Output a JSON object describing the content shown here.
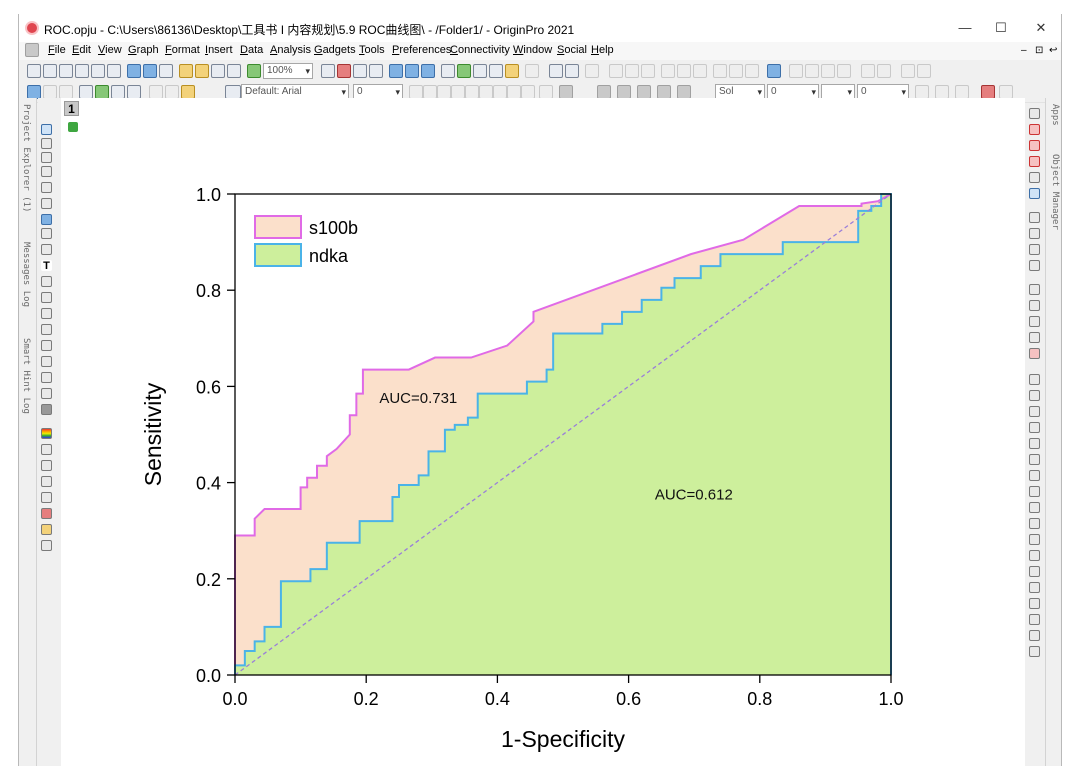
{
  "window": {
    "title": "ROC.opju - C:\\Users\\86136\\Desktop\\工具书 I 内容规划\\5.9 ROC曲线图\\ - /Folder1/ - OriginPro 2021",
    "minimize": "—",
    "maximize": "☐",
    "close": "✕"
  },
  "menu": {
    "items": [
      "File",
      "Edit",
      "View",
      "Graph",
      "Format",
      "Insert",
      "Data",
      "Analysis",
      "Gadgets",
      "Tools",
      "Preferences",
      "Connectivity",
      "Window",
      "Social",
      "Help"
    ],
    "mdi": [
      "–",
      "⊡",
      "↩"
    ]
  },
  "toolbar": {
    "zoom": "100%",
    "font": "Default: Arial",
    "font_size": "0",
    "line_style": "Sol",
    "line_width": "0",
    "fill_width": "0"
  },
  "left_dock": {
    "tabs": [
      "Project Explorer (1)",
      "Messages Log",
      "Smart Hint Log"
    ]
  },
  "right_dock": {
    "tabs": [
      "Apps",
      "Object Manager"
    ]
  },
  "graph": {
    "layer_label": "1"
  },
  "chart_data": {
    "type": "area",
    "xlabel": "1-Specificity",
    "ylabel": "Sensitivity",
    "xlim": [
      0,
      1
    ],
    "ylim": [
      0,
      1
    ],
    "xticks": [
      "0.0",
      "0.2",
      "0.4",
      "0.6",
      "0.8",
      "1.0"
    ],
    "yticks": [
      "0.0",
      "0.2",
      "0.4",
      "0.6",
      "0.8",
      "1.0"
    ],
    "grid": false,
    "legend_position": "top-left",
    "series": [
      {
        "name": "s100b",
        "line_color": "#e06ae6",
        "fill_color": "#fbe0cb",
        "x": [
          0,
          0,
          0.03,
          0.03,
          0.045,
          0.1,
          0.1,
          0.11,
          0.11,
          0.125,
          0.125,
          0.14,
          0.14,
          0.155,
          0.175,
          0.175,
          0.185,
          0.185,
          0.195,
          0.195,
          0.265,
          0.305,
          0.36,
          0.415,
          0.455,
          0.455,
          0.695,
          0.775,
          0.86,
          0.955,
          0.955,
          0.98,
          1.0
        ],
        "y": [
          0,
          0.29,
          0.29,
          0.325,
          0.345,
          0.345,
          0.39,
          0.39,
          0.41,
          0.41,
          0.435,
          0.435,
          0.455,
          0.47,
          0.5,
          0.54,
          0.54,
          0.585,
          0.585,
          0.635,
          0.635,
          0.66,
          0.66,
          0.685,
          0.735,
          0.755,
          0.875,
          0.905,
          0.975,
          0.975,
          0.98,
          0.985,
          1.0
        ]
      },
      {
        "name": "ndka",
        "line_color": "#4ab3e8",
        "fill_color": "#cdef9c",
        "x": [
          0,
          0,
          0.015,
          0.015,
          0.03,
          0.03,
          0.045,
          0.045,
          0.07,
          0.07,
          0.115,
          0.115,
          0.14,
          0.14,
          0.19,
          0.19,
          0.24,
          0.24,
          0.25,
          0.25,
          0.28,
          0.28,
          0.295,
          0.295,
          0.32,
          0.32,
          0.335,
          0.335,
          0.355,
          0.355,
          0.37,
          0.37,
          0.445,
          0.445,
          0.475,
          0.475,
          0.485,
          0.485,
          0.56,
          0.56,
          0.59,
          0.59,
          0.62,
          0.62,
          0.65,
          0.65,
          0.67,
          0.67,
          0.71,
          0.71,
          0.74,
          0.74,
          0.835,
          0.835,
          0.855,
          0.855,
          0.95,
          0.95,
          0.97,
          0.97,
          0.985,
          0.985,
          1.0,
          1.0
        ],
        "y": [
          0,
          0.02,
          0.02,
          0.05,
          0.05,
          0.07,
          0.07,
          0.1,
          0.1,
          0.195,
          0.195,
          0.22,
          0.22,
          0.275,
          0.275,
          0.32,
          0.32,
          0.37,
          0.37,
          0.395,
          0.395,
          0.415,
          0.415,
          0.465,
          0.465,
          0.51,
          0.51,
          0.52,
          0.52,
          0.535,
          0.535,
          0.585,
          0.585,
          0.61,
          0.61,
          0.635,
          0.635,
          0.71,
          0.71,
          0.73,
          0.73,
          0.755,
          0.755,
          0.78,
          0.78,
          0.805,
          0.805,
          0.825,
          0.825,
          0.85,
          0.85,
          0.875,
          0.875,
          0.9,
          0.9,
          0.9,
          0.9,
          0.965,
          0.965,
          0.975,
          0.975,
          1.0,
          1.0,
          0
        ]
      }
    ],
    "reference_line": {
      "x": [
        0,
        1
      ],
      "y": [
        0,
        1
      ],
      "color": "#9a7fd9",
      "style": "dashed"
    },
    "annotations": [
      {
        "text": "AUC=0.731",
        "x": 0.22,
        "y": 0.565
      },
      {
        "text": "AUC=0.612",
        "x": 0.64,
        "y": 0.365
      }
    ]
  }
}
